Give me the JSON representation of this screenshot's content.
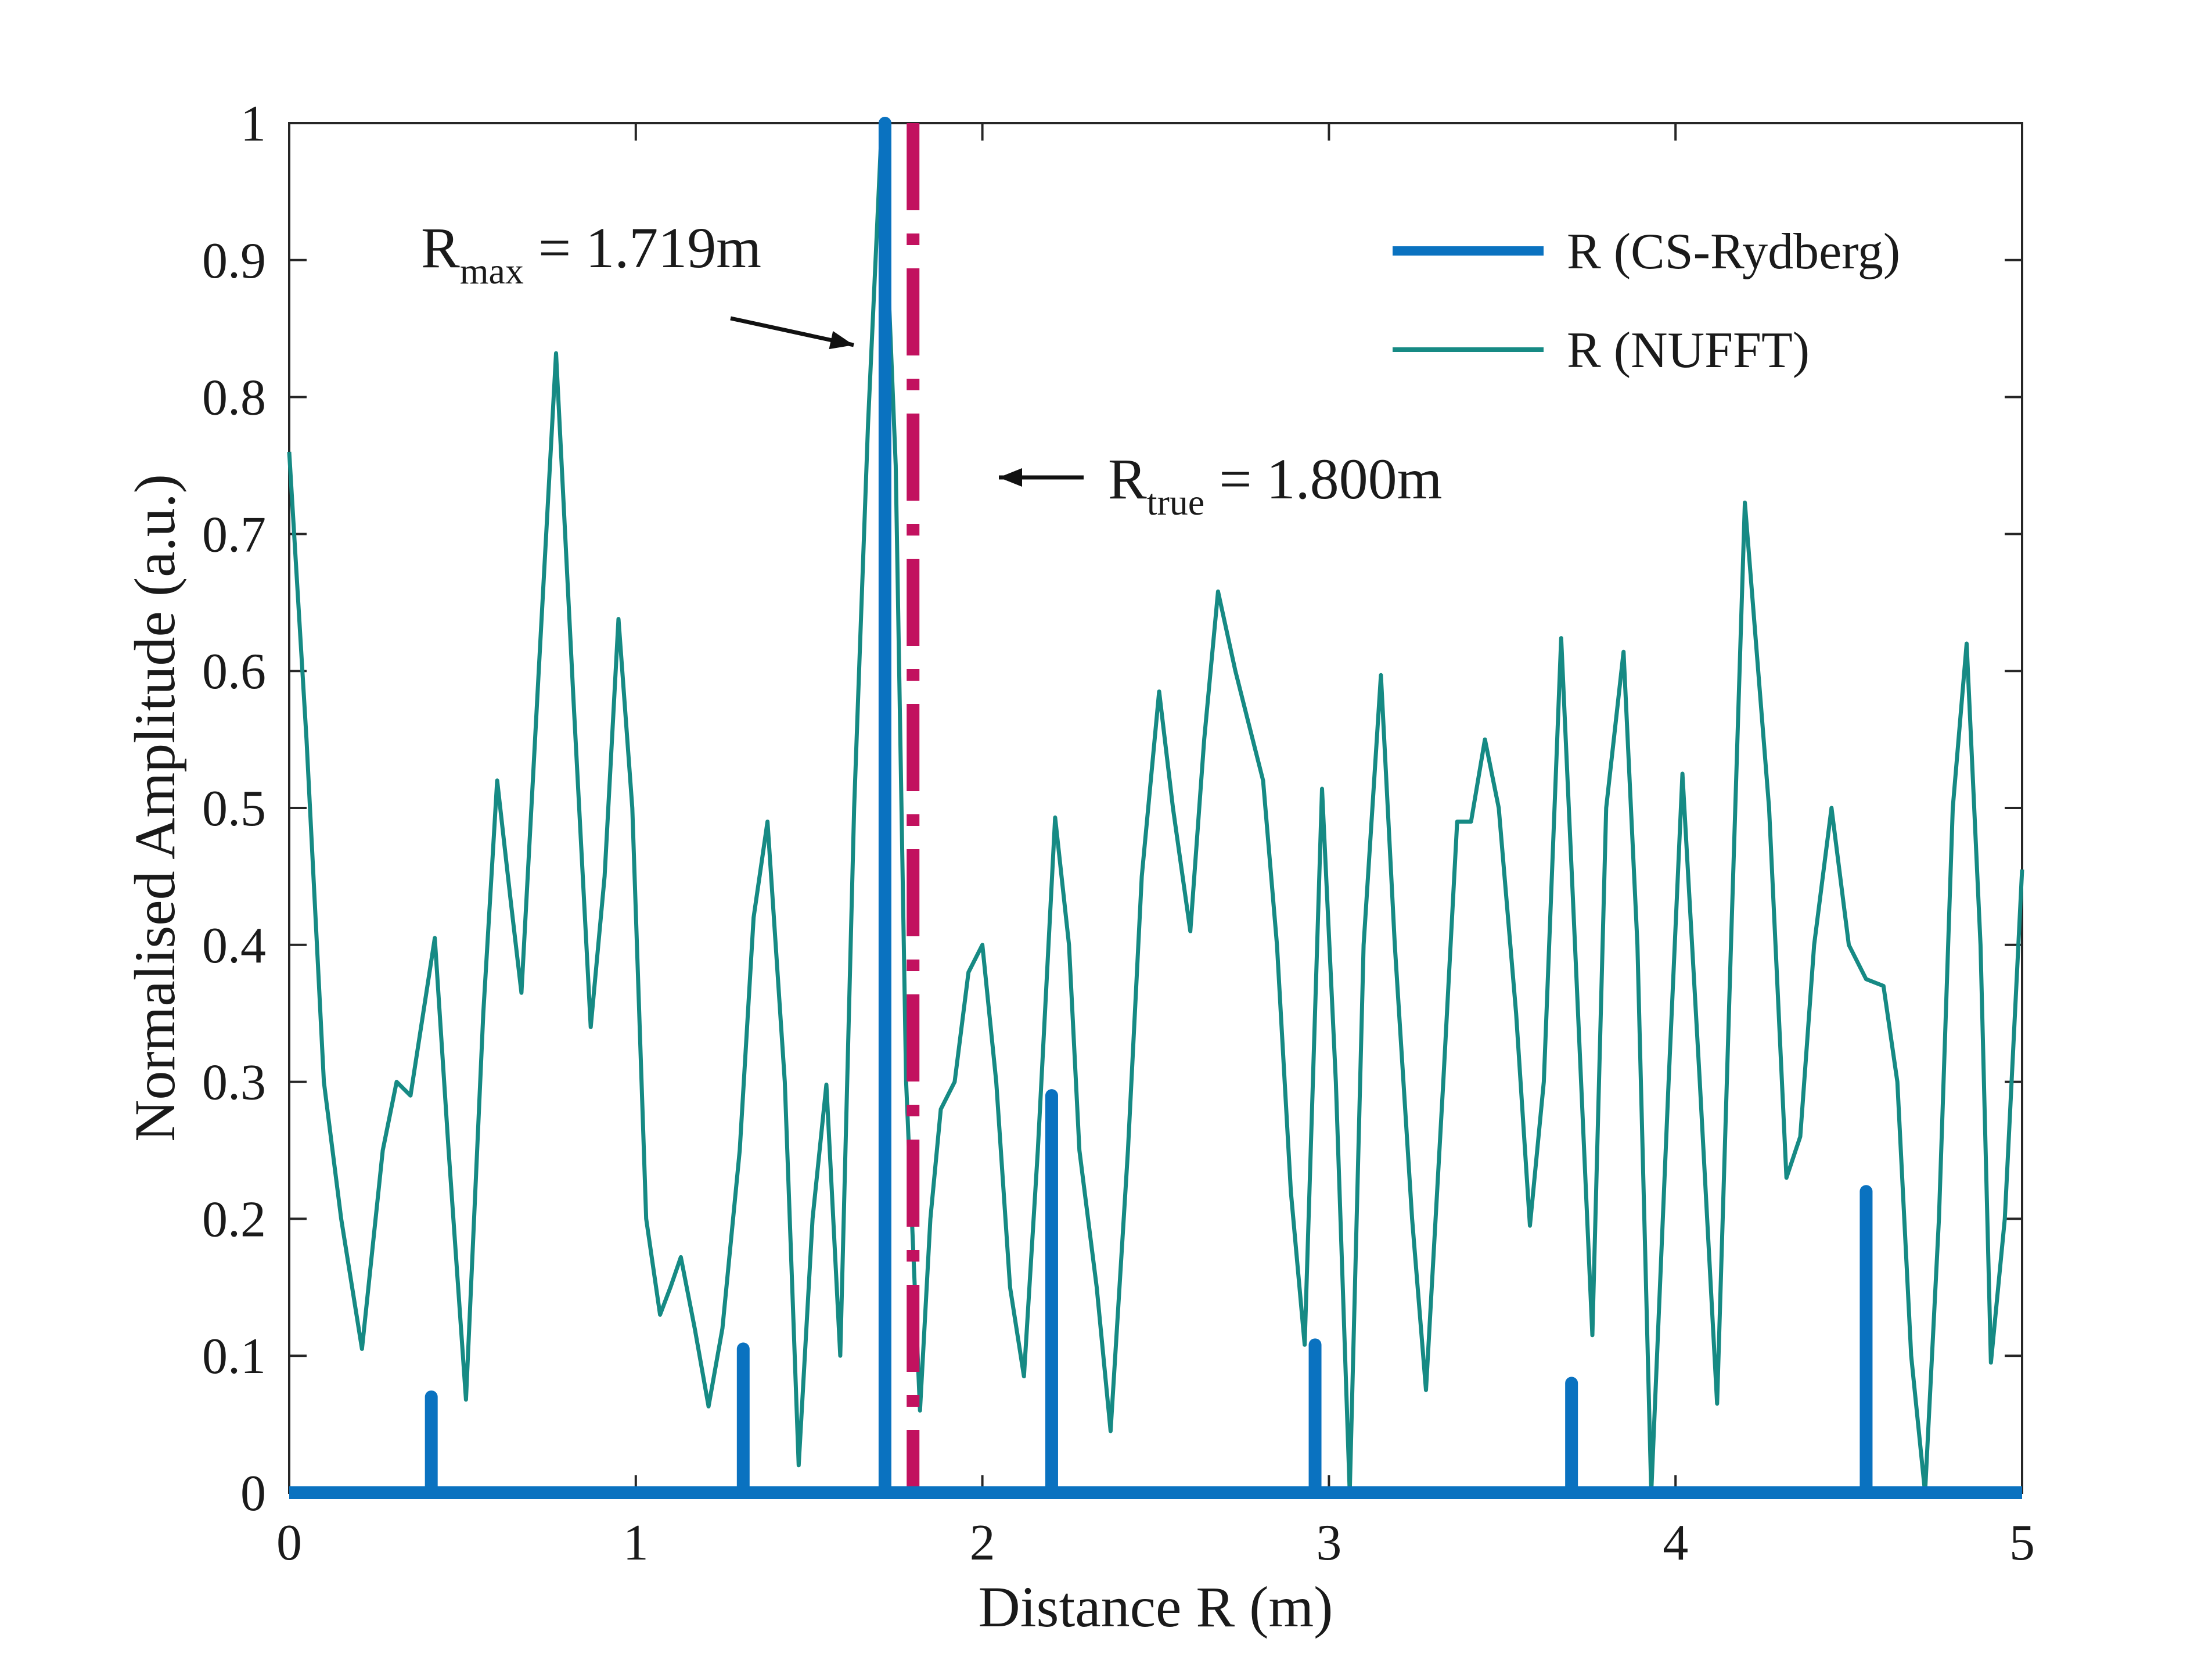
{
  "chart_data": {
    "type": "line",
    "title": "",
    "xlabel": "Distance R (m)",
    "ylabel": "Normalised Amplitude (a.u.)",
    "xlim": [
      0,
      5
    ],
    "ylim": [
      0,
      1
    ],
    "xticks": [
      0,
      1,
      2,
      3,
      4,
      5
    ],
    "xtick_labels": [
      "0",
      "1",
      "2",
      "3",
      "4",
      "5"
    ],
    "yticks": [
      0,
      0.1,
      0.2,
      0.3,
      0.4,
      0.5,
      0.6,
      0.7,
      0.8,
      0.9,
      1
    ],
    "ytick_labels": [
      "0",
      "0.1",
      "0.2",
      "0.3",
      "0.4",
      "0.5",
      "0.6",
      "0.7",
      "0.8",
      "0.9",
      "1"
    ],
    "grid": false,
    "legend_position": "top-right",
    "colors": {
      "cs": "#0a72c0",
      "nufft": "#168a84",
      "true": "#c2125f",
      "axis": "#262626"
    },
    "series": [
      {
        "name": "R (CS-Rydberg)",
        "style": "stem",
        "x": [
          0.41,
          1.31,
          1.719,
          2.2,
          2.96,
          3.7,
          4.55
        ],
        "values": [
          0.07,
          0.105,
          1.0,
          0.29,
          0.108,
          0.08,
          0.22
        ]
      },
      {
        "name": "R (NUFFT)",
        "style": "line",
        "x": [
          0,
          0.05,
          0.1,
          0.15,
          0.21,
          0.27,
          0.31,
          0.35,
          0.42,
          0.46,
          0.51,
          0.56,
          0.6,
          0.64,
          0.67,
          0.72,
          0.77,
          0.82,
          0.87,
          0.91,
          0.95,
          0.99,
          1.03,
          1.07,
          1.1,
          1.13,
          1.17,
          1.21,
          1.25,
          1.3,
          1.34,
          1.38,
          1.43,
          1.47,
          1.51,
          1.55,
          1.59,
          1.63,
          1.67,
          1.71,
          1.75,
          1.78,
          1.82,
          1.85,
          1.88,
          1.92,
          1.96,
          2.0,
          2.04,
          2.08,
          2.12,
          2.16,
          2.21,
          2.25,
          2.28,
          2.33,
          2.37,
          2.42,
          2.46,
          2.51,
          2.55,
          2.6,
          2.64,
          2.68,
          2.73,
          2.77,
          2.81,
          2.85,
          2.89,
          2.93,
          2.98,
          3.02,
          3.06,
          3.1,
          3.15,
          3.19,
          3.24,
          3.28,
          3.33,
          3.37,
          3.41,
          3.45,
          3.49,
          3.54,
          3.58,
          3.62,
          3.67,
          3.71,
          3.76,
          3.8,
          3.85,
          3.89,
          3.93,
          3.98,
          4.02,
          4.07,
          4.12,
          4.16,
          4.2,
          4.27,
          4.32,
          4.36,
          4.4,
          4.45,
          4.5,
          4.55,
          4.6,
          4.64,
          4.68,
          4.72,
          4.76,
          4.8,
          4.84,
          4.88,
          4.91,
          4.95,
          5.0
        ],
        "values": [
          0.76,
          0.55,
          0.3,
          0.2,
          0.105,
          0.25,
          0.3,
          0.29,
          0.405,
          0.25,
          0.068,
          0.35,
          0.52,
          0.43,
          0.365,
          0.6,
          0.832,
          0.58,
          0.34,
          0.45,
          0.638,
          0.5,
          0.2,
          0.13,
          0.15,
          0.172,
          0.12,
          0.063,
          0.12,
          0.25,
          0.42,
          0.49,
          0.3,
          0.02,
          0.2,
          0.298,
          0.1,
          0.5,
          0.78,
          1.0,
          0.75,
          0.3,
          0.06,
          0.2,
          0.28,
          0.3,
          0.38,
          0.4,
          0.3,
          0.15,
          0.085,
          0.25,
          0.493,
          0.4,
          0.25,
          0.15,
          0.045,
          0.25,
          0.45,
          0.585,
          0.5,
          0.41,
          0.55,
          0.658,
          0.6,
          0.56,
          0.52,
          0.4,
          0.22,
          0.108,
          0.514,
          0.3,
          0.0,
          0.4,
          0.597,
          0.4,
          0.2,
          0.075,
          0.3,
          0.49,
          0.49,
          0.55,
          0.5,
          0.35,
          0.195,
          0.3,
          0.624,
          0.4,
          0.115,
          0.5,
          0.614,
          0.4,
          0.0,
          0.3,
          0.525,
          0.3,
          0.065,
          0.4,
          0.723,
          0.5,
          0.23,
          0.26,
          0.4,
          0.5,
          0.4,
          0.375,
          0.37,
          0.3,
          0.1,
          0.0,
          0.2,
          0.5,
          0.62,
          0.4,
          0.095,
          0.2,
          0.455
        ]
      }
    ],
    "true_line": {
      "label": "R_true",
      "x": 1.8
    },
    "annotations": [
      {
        "id": "rmax",
        "main": "R",
        "sub": "max",
        "rest": " = 1.719m",
        "x": 1.719,
        "y": 1.0
      },
      {
        "id": "rtrue",
        "main": "R",
        "sub": "true",
        "rest": " = 1.800m",
        "x": 1.8,
        "y": 0.74
      }
    ]
  }
}
